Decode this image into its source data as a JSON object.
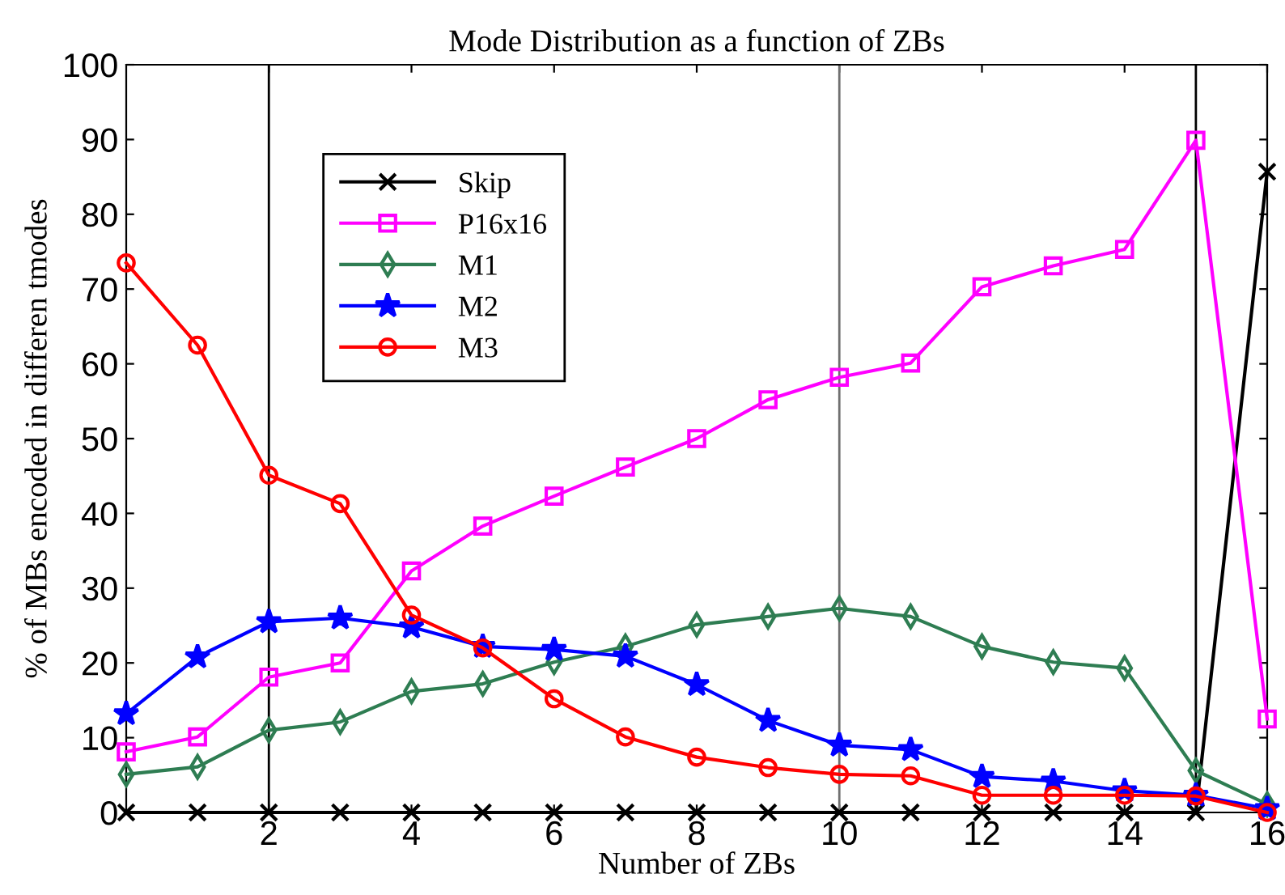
{
  "chart_data": {
    "type": "line",
    "title": "Mode Distribution as a function of ZBs",
    "xlabel": "Number of ZBs",
    "ylabel": "% of MBs encoded in differen tmodes",
    "x": [
      0,
      1,
      2,
      3,
      4,
      5,
      6,
      7,
      8,
      9,
      10,
      11,
      12,
      13,
      14,
      15,
      16
    ],
    "series": [
      {
        "name": "Skip",
        "color": "#000000",
        "marker": "cross",
        "values": [
          0,
          0,
          0,
          0,
          0,
          0,
          0,
          0,
          0,
          0,
          0,
          0,
          0,
          0,
          0,
          0,
          85.7
        ]
      },
      {
        "name": "P16x16",
        "color": "#ff00ff",
        "marker": "square",
        "values": [
          8.1,
          10.1,
          18.1,
          20.0,
          32.3,
          38.3,
          42.3,
          46.2,
          50.0,
          55.2,
          58.2,
          60.1,
          70.3,
          73.1,
          75.3,
          89.9,
          12.5
        ]
      },
      {
        "name": "M1",
        "color": "#2e7d52",
        "marker": "diamond",
        "values": [
          5.1,
          6.1,
          11.0,
          12.1,
          16.2,
          17.2,
          20.1,
          22.2,
          25.1,
          26.2,
          27.3,
          26.2,
          22.2,
          20.1,
          19.3,
          5.6,
          1.1
        ]
      },
      {
        "name": "M2",
        "color": "#0000ff",
        "marker": "star",
        "values": [
          13.2,
          20.8,
          25.5,
          26.0,
          24.8,
          22.2,
          21.8,
          20.9,
          17.1,
          12.3,
          9.0,
          8.4,
          4.8,
          4.2,
          2.9,
          2.3,
          0.5
        ]
      },
      {
        "name": "M3",
        "color": "#ff0000",
        "marker": "circle",
        "values": [
          73.5,
          62.5,
          45.1,
          41.3,
          26.4,
          22.0,
          15.2,
          10.1,
          7.4,
          6.0,
          5.1,
          4.9,
          2.3,
          2.3,
          2.3,
          2.2,
          0
        ]
      }
    ],
    "xlim": [
      0,
      16
    ],
    "xticks": [
      2,
      4,
      6,
      8,
      10,
      12,
      14,
      16
    ],
    "ylim": [
      0,
      100
    ],
    "yticks": [
      0,
      10,
      20,
      30,
      40,
      50,
      60,
      70,
      80,
      90,
      100
    ],
    "ref_lines": [
      {
        "axis": "x",
        "value": 2,
        "color": "#000000"
      },
      {
        "axis": "x",
        "value": 10,
        "color": "#707070"
      },
      {
        "axis": "x",
        "value": 15,
        "color": "#000000"
      }
    ],
    "grid": false,
    "legend": "top left",
    "line_style": "solid"
  }
}
